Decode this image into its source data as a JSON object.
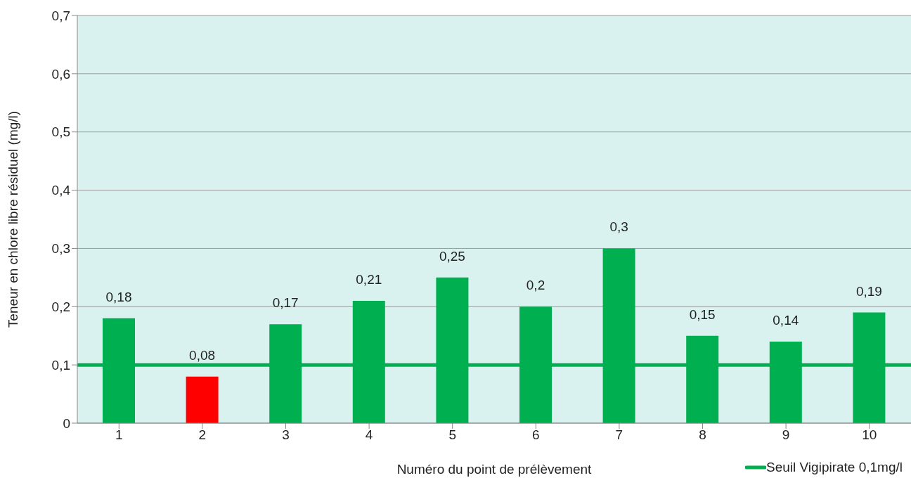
{
  "chart_data": {
    "type": "bar",
    "xlabel": "Numéro du point de prélèvement",
    "ylabel": "Teneur en chlore libre résiduel (mg/l)",
    "categories": [
      "1",
      "2",
      "3",
      "4",
      "5",
      "6",
      "7",
      "8",
      "9",
      "10"
    ],
    "values": [
      0.18,
      0.08,
      0.17,
      0.21,
      0.25,
      0.2,
      0.3,
      0.15,
      0.14,
      0.19
    ],
    "colors": [
      "#00b050",
      "#ff0000",
      "#00b050",
      "#00b050",
      "#00b050",
      "#00b050",
      "#00b050",
      "#00b050",
      "#00b050",
      "#00b050"
    ],
    "value_labels": [
      "0,18",
      "0,08",
      "0,17",
      "0,21",
      "0,25",
      "0,2",
      "0,3",
      "0,15",
      "0,14",
      "0,19"
    ],
    "ylim": [
      0,
      0.7
    ],
    "yticks": [
      0,
      {
        "value": 0.1,
        "label": "0,1"
      },
      {
        "value": 0.2,
        "label": "0,2"
      },
      {
        "value": 0.3,
        "label": "0,3"
      },
      {
        "value": 0.4,
        "label": "0,4"
      },
      {
        "value": 0.5,
        "label": "0,5"
      },
      {
        "value": 0.6,
        "label": "0,6"
      },
      {
        "value": 0.7,
        "label": "0,7"
      }
    ],
    "ref_lines": [
      {
        "axis": "y",
        "value": 0.1,
        "label": "Seuil Vigipirate 0,1mg/l",
        "color": "#00b050"
      }
    ],
    "grid": "y",
    "legend": "bottom right"
  }
}
